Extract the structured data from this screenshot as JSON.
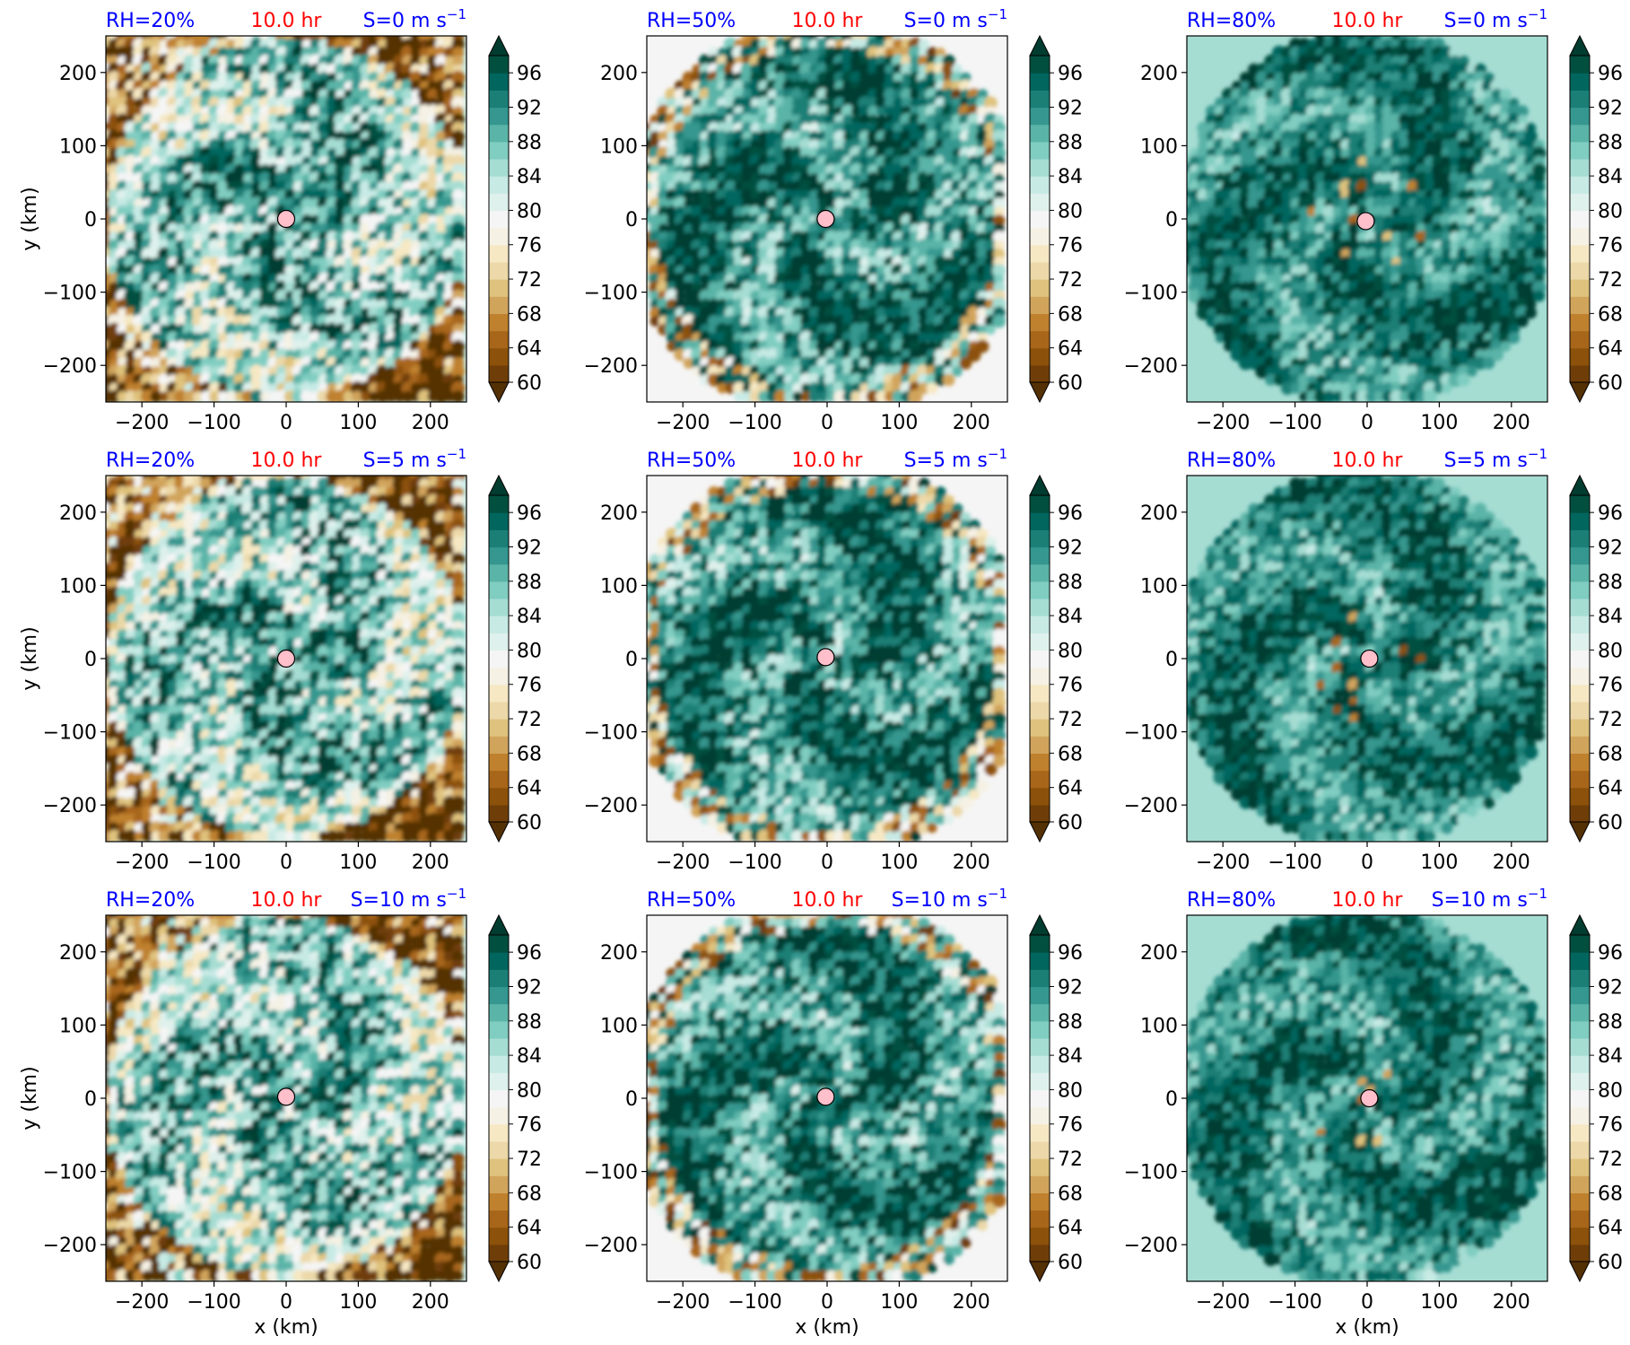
{
  "figure": {
    "xlabel": "x (km)",
    "ylabel": "y (km)",
    "time_label": "10.0 hr",
    "rh_labels": [
      "RH=20%",
      "RH=50%",
      "RH=80%"
    ],
    "shear_labels": [
      "S=0 m s",
      "S=5 m s",
      "S=10 m s"
    ],
    "shear_exponent": "−1",
    "xticks": [
      "−200",
      "−100",
      "0",
      "100",
      "200"
    ],
    "yticks": [
      "200",
      "100",
      "0",
      "−100",
      "−200"
    ],
    "colorbar_ticks": [
      "96",
      "92",
      "88",
      "84",
      "80",
      "76",
      "72",
      "68",
      "64",
      "60"
    ]
  },
  "colors": {
    "rh_label": "#0000ff",
    "time_label": "#ff0000",
    "shear_label": "#0000ff",
    "center_marker": "#ffc0cb",
    "colormap": [
      "#543005",
      "#6f3e08",
      "#8c510a",
      "#a8661a",
      "#bf812d",
      "#d1a45c",
      "#dfc27d",
      "#ecd8a8",
      "#f6e8c3",
      "#f5f1e4",
      "#f5f5f5",
      "#dff1ec",
      "#c7eae5",
      "#a6ddd3",
      "#80cdc1",
      "#5ab4a7",
      "#35978f",
      "#1b7f76",
      "#01665e",
      "#01503f",
      "#003c30"
    ]
  },
  "chart_data": [
    {
      "type": "heatmap",
      "quantity": "relative humidity (%)",
      "rh": "20%",
      "shear": "0 m s^-1",
      "time": "10.0 hr",
      "x_range": [
        -250,
        250
      ],
      "y_range": [
        -250,
        250
      ],
      "color_range": [
        60,
        98
      ],
      "colorbar_extend": "both",
      "center_marker": [
        0,
        0
      ]
    },
    {
      "type": "heatmap",
      "quantity": "relative humidity (%)",
      "rh": "50%",
      "shear": "0 m s^-1",
      "time": "10.0 hr",
      "x_range": [
        -250,
        250
      ],
      "y_range": [
        -250,
        250
      ],
      "color_range": [
        60,
        98
      ],
      "colorbar_extend": "both",
      "center_marker": [
        -2,
        0
      ]
    },
    {
      "type": "heatmap",
      "quantity": "relative humidity (%)",
      "rh": "80%",
      "shear": "0 m s^-1",
      "time": "10.0 hr",
      "x_range": [
        -250,
        250
      ],
      "y_range": [
        -250,
        250
      ],
      "color_range": [
        60,
        98
      ],
      "colorbar_extend": "both",
      "center_marker": [
        -2,
        -3
      ]
    },
    {
      "type": "heatmap",
      "quantity": "relative humidity (%)",
      "rh": "20%",
      "shear": "5 m s^-1",
      "time": "10.0 hr",
      "x_range": [
        -250,
        250
      ],
      "y_range": [
        -250,
        250
      ],
      "color_range": [
        60,
        98
      ],
      "colorbar_extend": "both",
      "center_marker": [
        0,
        0
      ]
    },
    {
      "type": "heatmap",
      "quantity": "relative humidity (%)",
      "rh": "50%",
      "shear": "5 m s^-1",
      "time": "10.0 hr",
      "x_range": [
        -250,
        250
      ],
      "y_range": [
        -250,
        250
      ],
      "color_range": [
        60,
        98
      ],
      "colorbar_extend": "both",
      "center_marker": [
        -2,
        2
      ]
    },
    {
      "type": "heatmap",
      "quantity": "relative humidity (%)",
      "rh": "80%",
      "shear": "5 m s^-1",
      "time": "10.0 hr",
      "x_range": [
        -250,
        250
      ],
      "y_range": [
        -250,
        250
      ],
      "color_range": [
        60,
        98
      ],
      "colorbar_extend": "both",
      "center_marker": [
        3,
        0
      ]
    },
    {
      "type": "heatmap",
      "quantity": "relative humidity (%)",
      "rh": "20%",
      "shear": "10 m s^-1",
      "time": "10.0 hr",
      "x_range": [
        -250,
        250
      ],
      "y_range": [
        -250,
        250
      ],
      "color_range": [
        60,
        98
      ],
      "colorbar_extend": "both",
      "center_marker": [
        0,
        2
      ]
    },
    {
      "type": "heatmap",
      "quantity": "relative humidity (%)",
      "rh": "50%",
      "shear": "10 m s^-1",
      "time": "10.0 hr",
      "x_range": [
        -250,
        250
      ],
      "y_range": [
        -250,
        250
      ],
      "color_range": [
        60,
        98
      ],
      "colorbar_extend": "both",
      "center_marker": [
        -2,
        2
      ]
    },
    {
      "type": "heatmap",
      "quantity": "relative humidity (%)",
      "rh": "80%",
      "shear": "10 m s^-1",
      "time": "10.0 hr",
      "x_range": [
        -250,
        250
      ],
      "y_range": [
        -250,
        250
      ],
      "color_range": [
        60,
        98
      ],
      "colorbar_extend": "both",
      "center_marker": [
        3,
        0
      ]
    }
  ]
}
